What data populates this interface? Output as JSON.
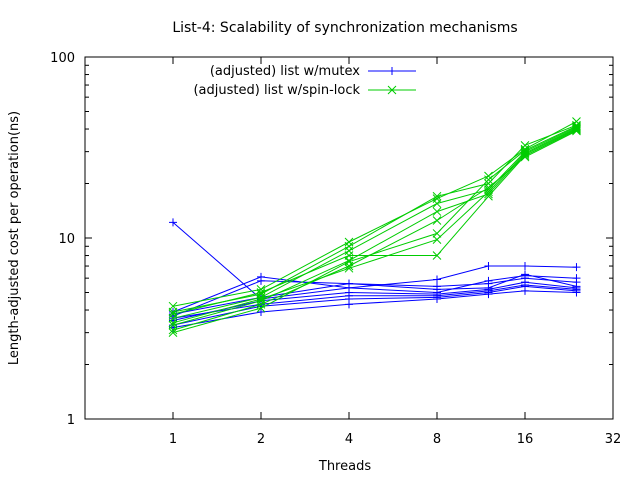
{
  "chart_data": {
    "type": "line",
    "title": "List-4: Scalability of synchronization mechanisms",
    "xlabel": "Threads",
    "ylabel": "Length-adjusted cost per operation(ns)",
    "x_scale": "log2",
    "y_scale": "log10",
    "xlim": [
      0.5,
      32
    ],
    "ylim": [
      1,
      100
    ],
    "x_ticks": [
      "1",
      "2",
      "4",
      "8",
      "16",
      "32"
    ],
    "y_ticks": [
      "1",
      "10",
      "100"
    ],
    "grid": false,
    "legend_position": "top-center",
    "x_values": [
      1,
      2,
      4,
      8,
      12,
      16,
      24
    ],
    "series": [
      {
        "name": "(adjusted) list w/mutex",
        "color": "#0000ff",
        "marker": "plus",
        "runs": [
          [
            12.2,
            4.6,
            5.3,
            5.0,
            5.8,
            6.2,
            6.0
          ],
          [
            3.9,
            6.1,
            5.3,
            5.9,
            7.0,
            7.0,
            6.9
          ],
          [
            3.7,
            5.8,
            5.6,
            5.4,
            5.6,
            6.0,
            5.7
          ],
          [
            3.8,
            4.7,
            5.6,
            5.2,
            5.3,
            6.3,
            5.4
          ],
          [
            3.5,
            4.5,
            5.0,
            4.9,
            5.2,
            5.7,
            5.3
          ],
          [
            3.3,
            4.2,
            4.6,
            4.7,
            5.0,
            5.4,
            5.1
          ],
          [
            3.2,
            3.9,
            4.3,
            4.6,
            4.9,
            5.1,
            5.0
          ],
          [
            3.6,
            4.3,
            4.8,
            4.8,
            5.1,
            5.5,
            5.2
          ]
        ]
      },
      {
        "name": "(adjusted) list w/spin-lock",
        "color": "#00cc00",
        "marker": "x",
        "runs": [
          [
            4.2,
            5.2,
            9.5,
            16.5,
            22.0,
            31.0,
            44.0
          ],
          [
            3.9,
            4.9,
            9.0,
            17.0,
            20.0,
            32.5,
            42.0
          ],
          [
            3.6,
            4.7,
            8.5,
            15.5,
            18.5,
            30.0,
            41.0
          ],
          [
            3.3,
            4.5,
            7.5,
            14.0,
            17.5,
            29.0,
            40.0
          ],
          [
            3.1,
            4.3,
            7.0,
            12.5,
            19.0,
            28.0,
            39.0
          ],
          [
            3.0,
            4.1,
            7.4,
            10.6,
            21.0,
            30.5,
            41.5
          ],
          [
            3.4,
            4.6,
            6.8,
            9.8,
            18.0,
            29.5,
            40.5
          ],
          [
            3.8,
            5.0,
            8.0,
            8.0,
            17.0,
            28.5,
            39.5
          ]
        ]
      }
    ]
  }
}
